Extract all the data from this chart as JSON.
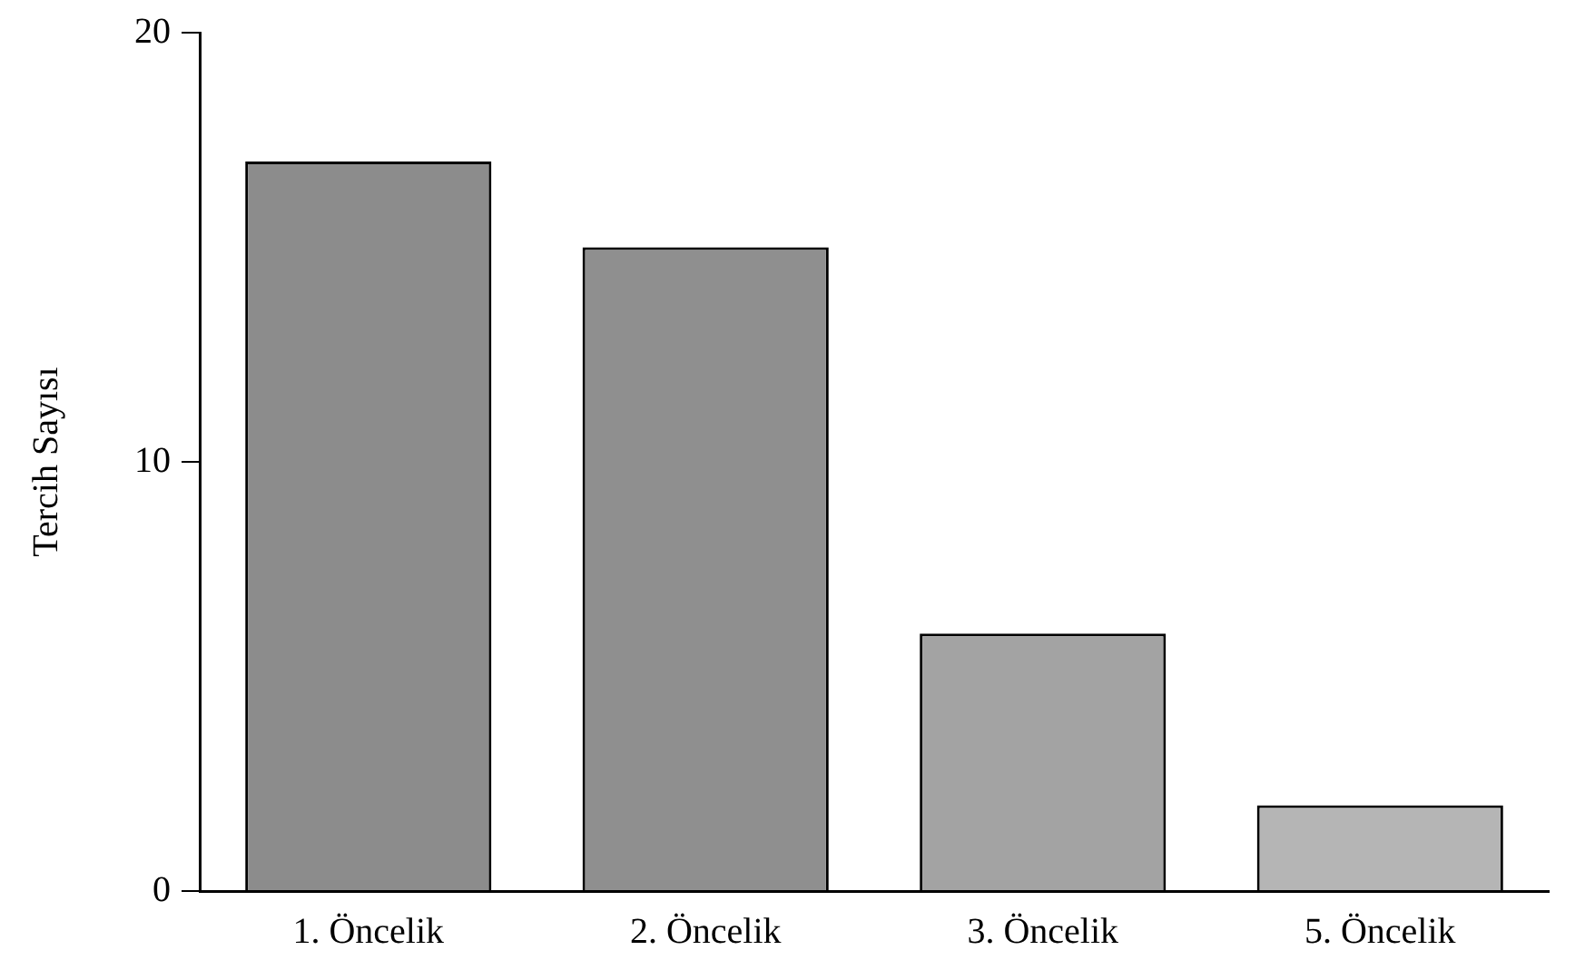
{
  "chart_data": {
    "type": "bar",
    "ylabel": "Tercih Sayısı",
    "categories": [
      "1. Öncelik",
      "2. Öncelik",
      "3. Öncelik",
      "5. Öncelik"
    ],
    "values": [
      17,
      15,
      6,
      2
    ],
    "colors": [
      "#8c8c8c",
      "#8f8f8f",
      "#a3a3a3",
      "#b5b5b5"
    ],
    "ylim": [
      0,
      20
    ],
    "yticks": [
      0,
      10,
      20
    ],
    "grid": false,
    "legend": false
  }
}
